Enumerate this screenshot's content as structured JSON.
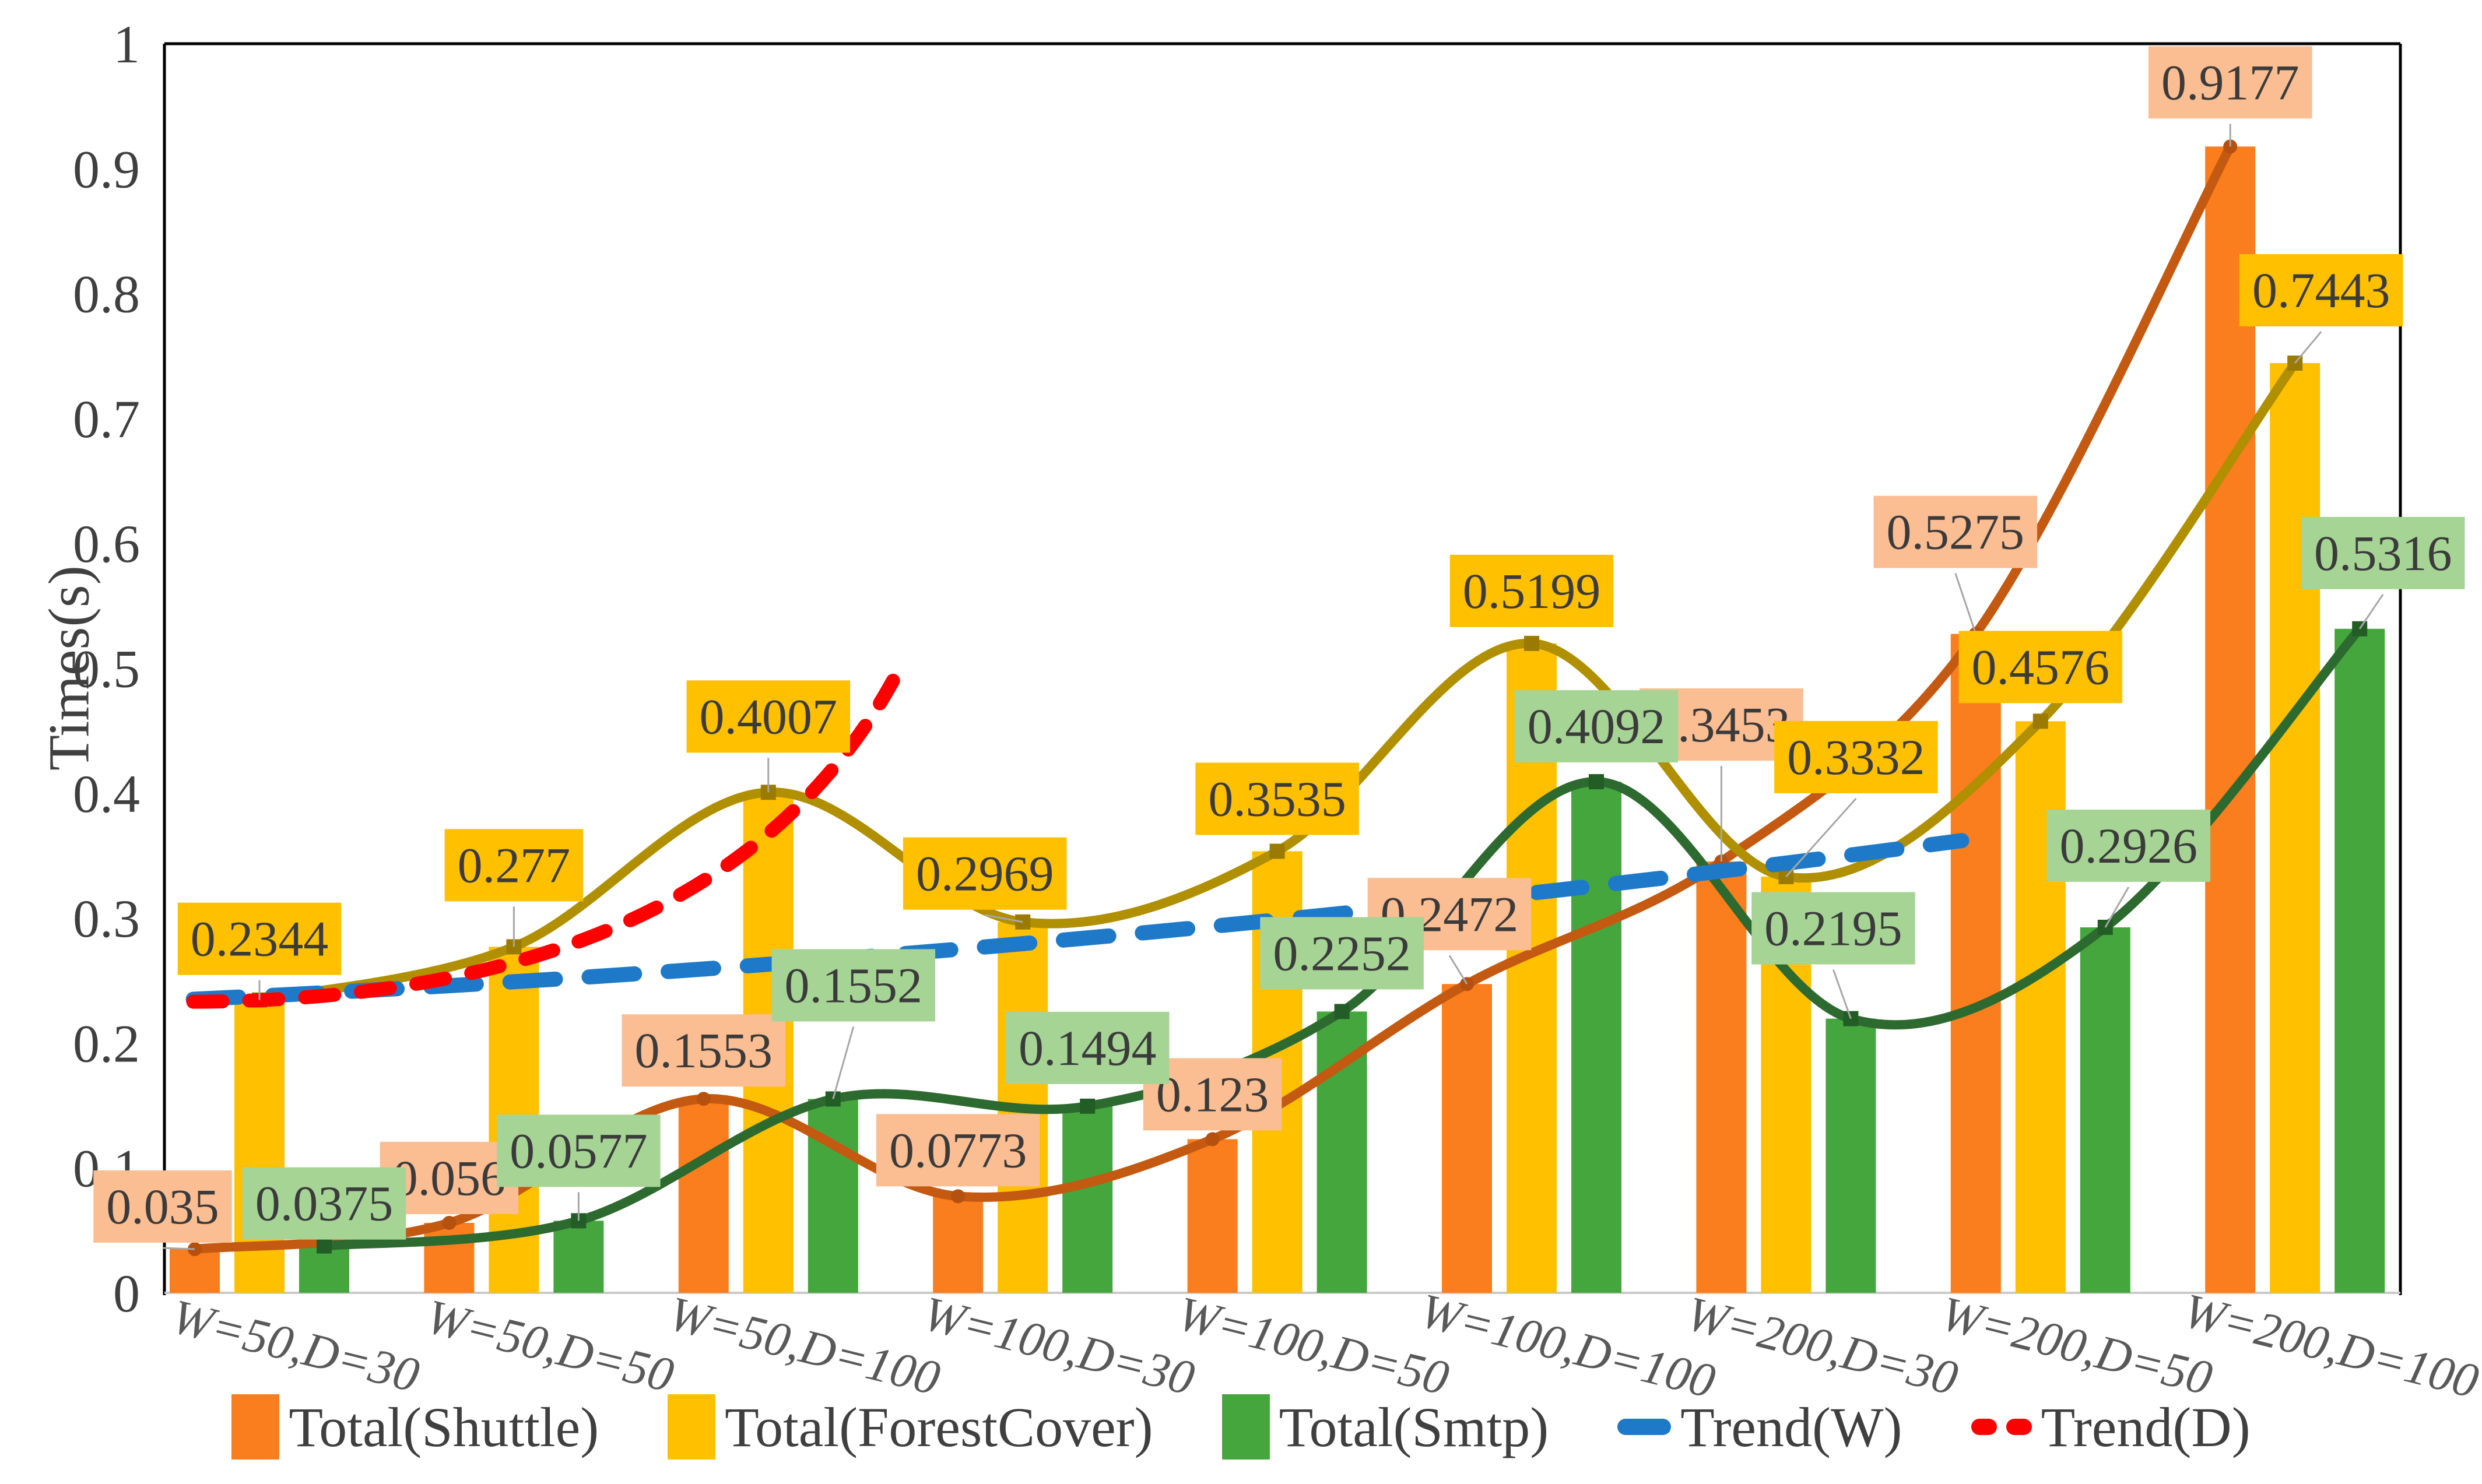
{
  "chart_data": {
    "type": "bar",
    "title": "",
    "ylabel": "Times(s)",
    "ylim": [
      0,
      1
    ],
    "y_ticks": [
      0,
      0.1,
      0.2,
      0.3,
      0.4,
      0.5,
      0.6,
      0.7,
      0.8,
      0.9,
      1
    ],
    "y_tick_labels": [
      "0",
      "0.1",
      "0.2",
      "0.3",
      "0.4",
      "0.5",
      "0.6",
      "0.7",
      "0.8",
      "0.9",
      "1"
    ],
    "grid": false,
    "legend_position": "bottom",
    "axis_color": "#000000",
    "baseline_color": "#C9C9C9",
    "tick_text_color": "#3F3F3F",
    "xlabel_text_color": "#595959",
    "data_label_text_color": "#3B3B3B",
    "leader_line_color": "#A6A6A6",
    "categories": [
      "W=50,D=30",
      "W=50,D=50",
      "W=50,D=100",
      "W=100,D=30",
      "W=100,D=50",
      "W=100,D=100",
      "W=200,D=30",
      "W=200,D=50",
      "W=200,D=100"
    ],
    "series": [
      {
        "name": "Total(Shuttle)",
        "type": "bar-with-smooth-line",
        "bar_color": "#FA7D1E",
        "line_color": "#C45911",
        "marker_color": "#B5500E",
        "label_bg": "#FBBD92",
        "marker": "circle",
        "values": [
          0.035,
          0.056,
          0.1553,
          0.0773,
          0.123,
          0.2472,
          0.3453,
          0.5275,
          0.9177
        ],
        "value_labels": [
          "0.035",
          "0.056",
          "0.1553",
          "0.0773",
          "0.123",
          "0.2472",
          "0.3453",
          "0.5275",
          "0.9177"
        ]
      },
      {
        "name": "Total(ForestCover)",
        "type": "bar-with-smooth-line",
        "bar_color": "#FFC000",
        "line_color": "#B08F00",
        "marker_color": "#9A7B00",
        "label_bg": "#FFC000",
        "marker": "square",
        "values": [
          0.2344,
          0.277,
          0.4007,
          0.2969,
          0.3535,
          0.5199,
          0.3332,
          0.4576,
          0.7443
        ],
        "value_labels": [
          "0.2344",
          "0.277",
          "0.4007",
          "0.2969",
          "0.3535",
          "0.5199",
          "0.3332",
          "0.4576",
          "0.7443"
        ]
      },
      {
        "name": "Total(Smtp)",
        "type": "bar-with-smooth-line",
        "bar_color": "#45A63D",
        "line_color": "#2D6A2F",
        "marker_color": "#235D26",
        "label_bg": "#A6D495",
        "marker": "square",
        "values": [
          0.0375,
          0.0577,
          0.1552,
          0.1494,
          0.2252,
          0.4092,
          0.2195,
          0.2926,
          0.5316
        ],
        "value_labels": [
          "0.0375",
          "0.0577",
          "0.1552",
          "0.1494",
          "0.2252",
          "0.4092",
          "0.2195",
          "0.2926",
          "0.5316"
        ]
      }
    ],
    "trend_series": [
      {
        "name": "Trend(W)",
        "color": "#1E7AC9",
        "line_style": "dashed",
        "start": {
          "x": -0.26,
          "y": 0.235
        },
        "mid": {
          "x": 3.2,
          "y": 0.268
        },
        "end": {
          "x": 6.69,
          "y": 0.362
        }
      },
      {
        "name": "Trend(D)",
        "color": "#FF0000",
        "line_style": "dashed",
        "start": {
          "x": -0.26,
          "y": 0.233
        },
        "mid": {
          "x": 1.8,
          "y": 0.235
        },
        "end": {
          "x": 2.49,
          "y": 0.49
        }
      }
    ]
  }
}
